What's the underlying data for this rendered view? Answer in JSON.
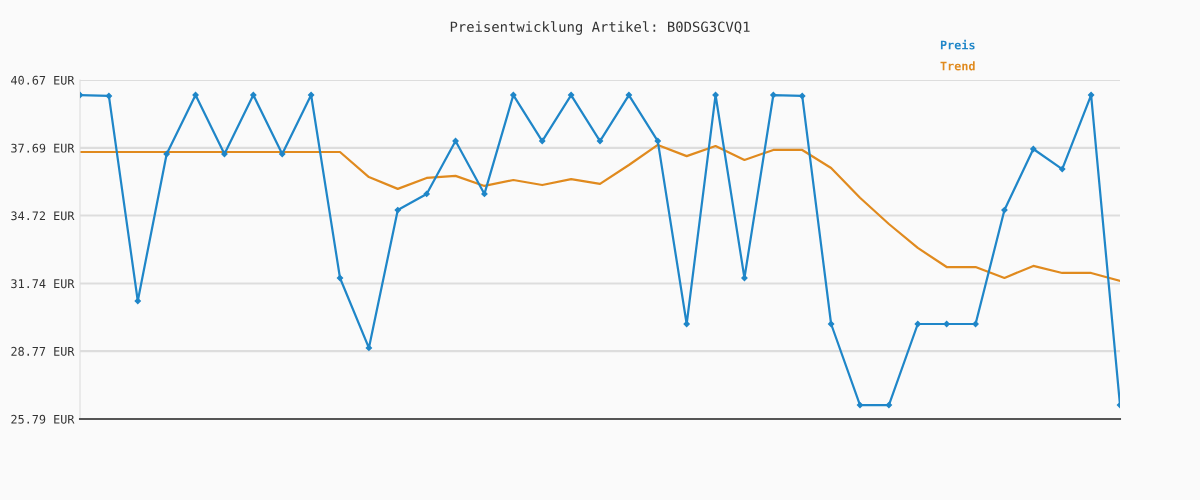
{
  "chart_data": {
    "type": "line",
    "title": "Preisentwicklung Artikel: B0DSG3CVQ1",
    "categories": [
      null,
      null,
      null,
      null,
      null,
      null,
      null,
      null,
      null,
      null,
      null,
      null,
      null,
      null,
      null,
      null,
      null,
      null,
      null,
      null,
      null,
      null,
      null,
      null,
      null,
      null,
      null,
      null,
      null,
      null,
      null,
      null,
      null,
      null,
      null,
      null,
      null
    ],
    "series": [
      {
        "name": "Preis",
        "color": "#1f86c8",
        "marker": "diamond",
        "values": [
          40.01,
          39.97,
          30.97,
          37.42,
          40.01,
          37.42,
          40.01,
          37.42,
          40.01,
          31.98,
          28.91,
          34.96,
          35.67,
          37.99,
          35.67,
          40.01,
          37.99,
          40.01,
          37.99,
          40.01,
          37.99,
          29.96,
          40.01,
          31.98,
          40.01,
          39.97,
          29.96,
          26.4,
          26.4,
          29.96,
          29.96,
          29.96,
          34.96,
          37.64,
          36.76,
          40.01,
          26.4
        ]
      },
      {
        "name": "Trend",
        "color": "#e08a1e",
        "marker": "none",
        "values": [
          37.51,
          37.51,
          37.51,
          37.51,
          37.51,
          37.51,
          37.51,
          37.51,
          37.51,
          37.51,
          36.41,
          35.89,
          36.37,
          36.46,
          36.02,
          36.28,
          36.06,
          36.32,
          36.11,
          36.94,
          37.82,
          37.33,
          37.77,
          37.16,
          37.6,
          37.6,
          36.81,
          35.5,
          34.35,
          33.3,
          32.46,
          32.46,
          31.98,
          32.51,
          32.2,
          32.2,
          31.85
        ]
      }
    ],
    "ylim": [
      25.79,
      40.67
    ],
    "yticks": [
      {
        "value": 25.79,
        "label": "25.79 EUR"
      },
      {
        "value": 28.77,
        "label": "28.77 EUR"
      },
      {
        "value": 31.74,
        "label": "31.74 EUR"
      },
      {
        "value": 34.72,
        "label": "34.72 EUR"
      },
      {
        "value": 37.69,
        "label": "37.69 EUR"
      },
      {
        "value": 40.67,
        "label": "40.67 EUR"
      }
    ],
    "grid": "y",
    "legend": "top right",
    "line_style": "solid"
  }
}
